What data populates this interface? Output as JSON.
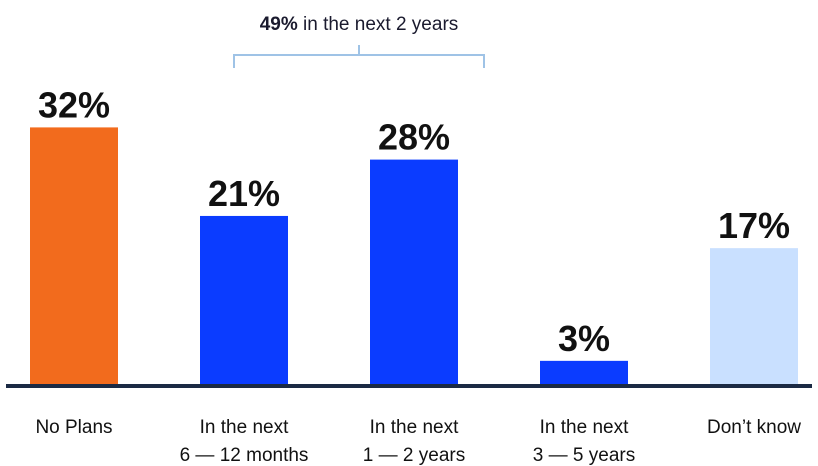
{
  "chart_data": {
    "type": "bar",
    "categories": [
      [
        "No Plans"
      ],
      [
        "In the next",
        "6 — 12 months"
      ],
      [
        "In the next",
        "1 — 2 years"
      ],
      [
        "In the next",
        "3 — 5 years"
      ],
      [
        "Don’t know"
      ]
    ],
    "values": [
      32,
      21,
      28,
      3,
      17
    ],
    "value_labels": [
      "32%",
      "21%",
      "28%",
      "3%",
      "17%"
    ],
    "colors": [
      "#f26b1d",
      "#0b3cff",
      "#0b3cff",
      "#0b3cff",
      "#c9e0ff"
    ],
    "baseline_color": "#1b2a44",
    "bracket_color": "#9fc3e6",
    "annotation": {
      "strong": "49%",
      "rest": " in the next 2 years",
      "spans_categories": [
        1,
        2
      ]
    },
    "title": "",
    "xlabel": "",
    "ylabel": "",
    "ylim": [
      0,
      32
    ],
    "grid": false,
    "legend": "none"
  }
}
